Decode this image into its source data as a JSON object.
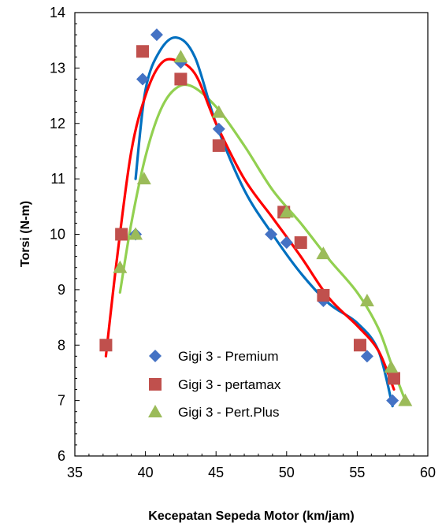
{
  "chart_data": {
    "type": "scatter",
    "xlabel": "Kecepatan Sepeda Motor (km/jam)",
    "ylabel": "Torsi   (N-m)",
    "xlim": [
      35,
      60
    ],
    "ylim": [
      6,
      14
    ],
    "xticks": [
      35,
      40,
      45,
      50,
      55,
      60
    ],
    "yticks": [
      6,
      7,
      8,
      9,
      10,
      11,
      12,
      13,
      14
    ],
    "grid": false,
    "legend_position": "inside-lower-center",
    "series": [
      {
        "name": "Gigi 3 - Premium",
        "marker": "diamond",
        "marker_color": "#4472C4",
        "line_color": "#0070C0",
        "points": [
          {
            "x": 39.3,
            "y": 10.0
          },
          {
            "x": 39.8,
            "y": 12.8
          },
          {
            "x": 40.8,
            "y": 13.6
          },
          {
            "x": 42.5,
            "y": 13.1
          },
          {
            "x": 45.2,
            "y": 11.9
          },
          {
            "x": 48.9,
            "y": 10.0
          },
          {
            "x": 50.0,
            "y": 9.85
          },
          {
            "x": 52.6,
            "y": 8.8
          },
          {
            "x": 55.7,
            "y": 7.8
          },
          {
            "x": 57.5,
            "y": 7.0
          }
        ],
        "trend": [
          {
            "x": 39.3,
            "y": 11.0
          },
          {
            "x": 40.0,
            "y": 12.6
          },
          {
            "x": 41.0,
            "y": 13.3
          },
          {
            "x": 42.2,
            "y": 13.55
          },
          {
            "x": 43.5,
            "y": 13.2
          },
          {
            "x": 45.0,
            "y": 12.0
          },
          {
            "x": 47.0,
            "y": 10.8
          },
          {
            "x": 49.0,
            "y": 10.0
          },
          {
            "x": 51.0,
            "y": 9.3
          },
          {
            "x": 53.0,
            "y": 8.75
          },
          {
            "x": 55.0,
            "y": 8.4
          },
          {
            "x": 56.5,
            "y": 7.9
          },
          {
            "x": 57.5,
            "y": 6.9
          }
        ]
      },
      {
        "name": "Gigi 3 - pertamax",
        "marker": "square",
        "marker_color": "#C0504D",
        "line_color": "#FF0000",
        "points": [
          {
            "x": 37.2,
            "y": 8.0
          },
          {
            "x": 38.3,
            "y": 10.0
          },
          {
            "x": 39.8,
            "y": 13.3
          },
          {
            "x": 42.5,
            "y": 12.8
          },
          {
            "x": 45.2,
            "y": 11.6
          },
          {
            "x": 49.8,
            "y": 10.4
          },
          {
            "x": 51.0,
            "y": 9.85
          },
          {
            "x": 52.6,
            "y": 8.9
          },
          {
            "x": 55.2,
            "y": 8.0
          },
          {
            "x": 57.6,
            "y": 7.4
          }
        ],
        "trend": [
          {
            "x": 37.2,
            "y": 7.8
          },
          {
            "x": 38.0,
            "y": 9.6
          },
          {
            "x": 39.0,
            "y": 11.5
          },
          {
            "x": 40.0,
            "y": 12.5
          },
          {
            "x": 41.0,
            "y": 13.05
          },
          {
            "x": 42.0,
            "y": 13.15
          },
          {
            "x": 43.5,
            "y": 12.9
          },
          {
            "x": 45.0,
            "y": 12.0
          },
          {
            "x": 47.0,
            "y": 11.0
          },
          {
            "x": 49.0,
            "y": 10.3
          },
          {
            "x": 51.0,
            "y": 9.6
          },
          {
            "x": 53.0,
            "y": 8.85
          },
          {
            "x": 55.0,
            "y": 8.35
          },
          {
            "x": 56.5,
            "y": 7.9
          },
          {
            "x": 57.6,
            "y": 7.2
          }
        ]
      },
      {
        "name": "Gigi 3 - Pert.Plus",
        "marker": "triangle",
        "marker_color": "#9BBB59",
        "line_color": "#92D050",
        "points": [
          {
            "x": 38.2,
            "y": 9.4
          },
          {
            "x": 39.3,
            "y": 10.0
          },
          {
            "x": 39.9,
            "y": 11.0
          },
          {
            "x": 42.5,
            "y": 13.2
          },
          {
            "x": 45.2,
            "y": 12.2
          },
          {
            "x": 50.0,
            "y": 10.4
          },
          {
            "x": 52.6,
            "y": 9.65
          },
          {
            "x": 55.7,
            "y": 8.8
          },
          {
            "x": 57.4,
            "y": 7.6
          },
          {
            "x": 58.4,
            "y": 7.0
          }
        ],
        "trend": [
          {
            "x": 38.2,
            "y": 8.95
          },
          {
            "x": 39.0,
            "y": 10.2
          },
          {
            "x": 40.0,
            "y": 11.4
          },
          {
            "x": 41.0,
            "y": 12.2
          },
          {
            "x": 42.0,
            "y": 12.6
          },
          {
            "x": 43.2,
            "y": 12.68
          },
          {
            "x": 45.0,
            "y": 12.3
          },
          {
            "x": 47.0,
            "y": 11.6
          },
          {
            "x": 49.0,
            "y": 10.8
          },
          {
            "x": 51.0,
            "y": 10.2
          },
          {
            "x": 53.0,
            "y": 9.55
          },
          {
            "x": 55.0,
            "y": 8.95
          },
          {
            "x": 56.5,
            "y": 8.3
          },
          {
            "x": 57.5,
            "y": 7.6
          },
          {
            "x": 58.4,
            "y": 7.0
          }
        ]
      }
    ]
  }
}
